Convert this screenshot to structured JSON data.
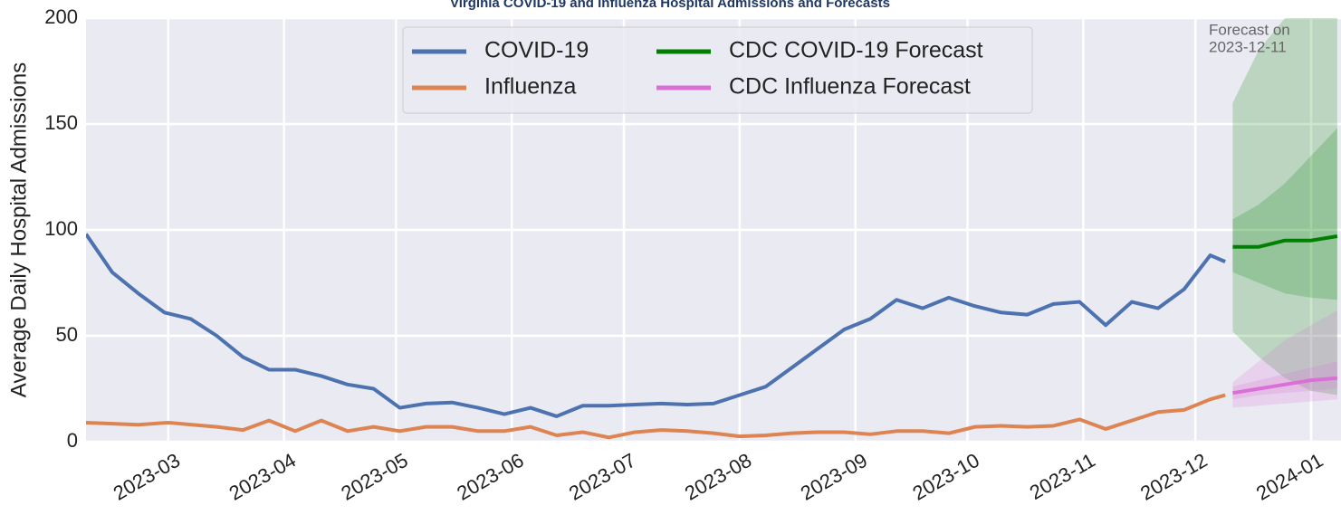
{
  "chart_data": {
    "type": "line",
    "title": "Virginia COVID-19 and Influenza Hospital Admissions and Forecasts",
    "ylabel": "Average Daily Hospital Admissions",
    "annotation": [
      "Forecast on",
      "2023-12-11"
    ],
    "xlim": [
      "2023-02-07",
      "2024-01-09"
    ],
    "xticks": [
      {
        "value": "2023-03-01",
        "label": "2023-03"
      },
      {
        "value": "2023-04-01",
        "label": "2023-04"
      },
      {
        "value": "2023-05-01",
        "label": "2023-05"
      },
      {
        "value": "2023-06-01",
        "label": "2023-06"
      },
      {
        "value": "2023-07-01",
        "label": "2023-07"
      },
      {
        "value": "2023-08-01",
        "label": "2023-08"
      },
      {
        "value": "2023-09-01",
        "label": "2023-09"
      },
      {
        "value": "2023-10-01",
        "label": "2023-10"
      },
      {
        "value": "2023-11-01",
        "label": "2023-11"
      },
      {
        "value": "2023-12-01",
        "label": "2023-12"
      },
      {
        "value": "2024-01-01",
        "label": "2024-01"
      }
    ],
    "ylim": [
      0,
      200
    ],
    "yticks": [
      0,
      50,
      100,
      150,
      200
    ],
    "grid": true,
    "legend": "upper center",
    "series": [
      {
        "name": "COVID-19",
        "color": "#4c72b0",
        "x": [
          "2023-02-07",
          "2023-02-14",
          "2023-02-21",
          "2023-02-28",
          "2023-03-07",
          "2023-03-14",
          "2023-03-21",
          "2023-03-28",
          "2023-04-04",
          "2023-04-11",
          "2023-04-18",
          "2023-04-25",
          "2023-05-02",
          "2023-05-09",
          "2023-05-16",
          "2023-05-23",
          "2023-05-30",
          "2023-06-06",
          "2023-06-13",
          "2023-06-20",
          "2023-06-27",
          "2023-07-04",
          "2023-07-11",
          "2023-07-18",
          "2023-07-25",
          "2023-08-01",
          "2023-08-08",
          "2023-08-15",
          "2023-08-22",
          "2023-08-29",
          "2023-09-05",
          "2023-09-12",
          "2023-09-19",
          "2023-09-26",
          "2023-10-03",
          "2023-10-10",
          "2023-10-17",
          "2023-10-24",
          "2023-10-31",
          "2023-11-07",
          "2023-11-14",
          "2023-11-21",
          "2023-11-28",
          "2023-12-05",
          "2023-12-09"
        ],
        "values": [
          98,
          80,
          70,
          61,
          58,
          50,
          40,
          34,
          34,
          31,
          27,
          25,
          16,
          18,
          18.5,
          16,
          13,
          16,
          12,
          17,
          17,
          17.5,
          18,
          17.5,
          18,
          22,
          26,
          35,
          44,
          53,
          58,
          67,
          63,
          68,
          64,
          61,
          60,
          65,
          66,
          55,
          66,
          63,
          72,
          88,
          85
        ]
      },
      {
        "name": "Influenza",
        "color": "#dd8452",
        "x": [
          "2023-02-07",
          "2023-02-21",
          "2023-03-01",
          "2023-03-14",
          "2023-03-21",
          "2023-03-28",
          "2023-04-04",
          "2023-04-11",
          "2023-04-18",
          "2023-04-25",
          "2023-05-02",
          "2023-05-09",
          "2023-05-16",
          "2023-05-23",
          "2023-05-30",
          "2023-06-06",
          "2023-06-13",
          "2023-06-20",
          "2023-06-27",
          "2023-07-04",
          "2023-07-11",
          "2023-07-18",
          "2023-07-25",
          "2023-08-01",
          "2023-08-08",
          "2023-08-15",
          "2023-08-22",
          "2023-08-29",
          "2023-09-05",
          "2023-09-12",
          "2023-09-19",
          "2023-09-26",
          "2023-10-03",
          "2023-10-10",
          "2023-10-17",
          "2023-10-24",
          "2023-10-31",
          "2023-11-07",
          "2023-11-14",
          "2023-11-21",
          "2023-11-28",
          "2023-12-05",
          "2023-12-09"
        ],
        "values": [
          9,
          8,
          9,
          7,
          5.5,
          10,
          5,
          10,
          5,
          7,
          5,
          7,
          7,
          5,
          5,
          7,
          3,
          4.5,
          2,
          4.5,
          5.5,
          5,
          4,
          2.5,
          3,
          4,
          4.5,
          4.5,
          3.5,
          5,
          5,
          4,
          7,
          7.5,
          7,
          7.5,
          10.5,
          6,
          10,
          14,
          15,
          20,
          22
        ]
      },
      {
        "name": "CDC COVID-19 Forecast",
        "color": "#008000",
        "x": [
          "2023-12-11",
          "2023-12-18",
          "2023-12-25",
          "2024-01-01",
          "2024-01-08"
        ],
        "values": [
          92,
          92,
          95,
          95,
          97
        ],
        "intervals": [
          {
            "lower": [
              52,
              40,
              30,
              24,
              22
            ],
            "upper": [
              160,
              185,
              200,
              215,
              225
            ]
          },
          {
            "lower": [
              80,
              75,
              70,
              68,
              67
            ],
            "upper": [
              105,
              112,
              122,
              135,
              148
            ]
          }
        ]
      },
      {
        "name": "CDC Influenza Forecast",
        "color": "#da70d6",
        "x": [
          "2023-12-11",
          "2023-12-18",
          "2023-12-25",
          "2024-01-01",
          "2024-01-08"
        ],
        "values": [
          23,
          25,
          27,
          29,
          30
        ],
        "intervals": [
          {
            "lower": [
              16,
              17,
              18,
              19,
              20
            ],
            "upper": [
              28,
              38,
              48,
              55,
              62
            ]
          },
          {
            "lower": [
              20,
              22,
              23,
              24,
              25
            ],
            "upper": [
              26,
              29,
              32,
              35,
              38
            ]
          }
        ]
      }
    ]
  }
}
